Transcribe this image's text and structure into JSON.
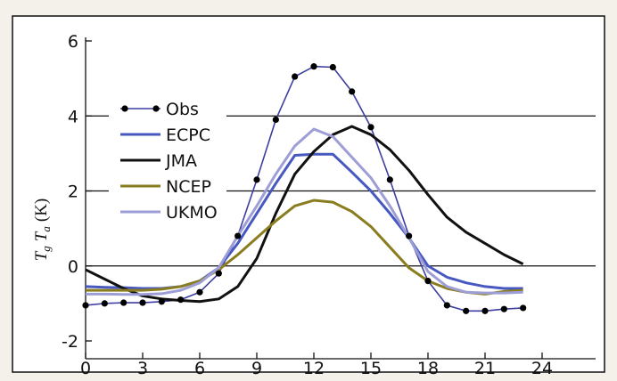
{
  "chart_data": {
    "type": "line",
    "title": "",
    "xlabel": "",
    "ylabel": "Tg Ta (K)",
    "ylabel_parts": {
      "sym1": "T",
      "sub1": "g",
      "sym2": "T",
      "sub2": "a",
      "unit": "(K)"
    },
    "xlim": [
      0,
      24
    ],
    "ylim": [
      -2,
      6
    ],
    "xticks": [
      0,
      3,
      6,
      9,
      12,
      15,
      18,
      21,
      24
    ],
    "xtick_labels": [
      "0",
      "3",
      "6",
      "9",
      "12",
      "15",
      "18",
      "21",
      "24"
    ],
    "yticks": [
      -2,
      0,
      2,
      4,
      6
    ],
    "ytick_labels": [
      "-2",
      "0",
      "2",
      "4",
      "6"
    ],
    "grid": {
      "horizontal": [
        0,
        2,
        4
      ],
      "vertical": false
    },
    "legend": {
      "placement": "upper-left"
    },
    "x": [
      0,
      1,
      2,
      3,
      4,
      5,
      6,
      7,
      8,
      9,
      10,
      11,
      12,
      13,
      14,
      15,
      16,
      17,
      18,
      19,
      20,
      21,
      22,
      23
    ],
    "series": [
      {
        "name": "Obs",
        "color": "#3d3fa0",
        "markers": true,
        "values": [
          -1.05,
          -1.0,
          -0.98,
          -0.98,
          -0.95,
          -0.9,
          -0.7,
          -0.2,
          0.8,
          2.3,
          3.9,
          5.05,
          5.32,
          5.3,
          4.65,
          3.7,
          2.3,
          0.8,
          -0.4,
          -1.05,
          -1.2,
          -1.2,
          -1.15,
          -1.12
        ]
      },
      {
        "name": "ECPC",
        "color": "#4758c0",
        "markers": false,
        "values": [
          -0.55,
          -0.57,
          -0.58,
          -0.6,
          -0.6,
          -0.55,
          -0.4,
          -0.05,
          0.6,
          1.4,
          2.2,
          2.95,
          2.98,
          2.98,
          2.5,
          2.0,
          1.4,
          0.75,
          0.0,
          -0.3,
          -0.45,
          -0.55,
          -0.6,
          -0.6
        ]
      },
      {
        "name": "JMA",
        "color": "#111111",
        "markers": false,
        "values": [
          -0.1,
          -0.35,
          -0.6,
          -0.8,
          -0.88,
          -0.92,
          -0.95,
          -0.88,
          -0.55,
          0.2,
          1.4,
          2.45,
          3.05,
          3.5,
          3.72,
          3.5,
          3.1,
          2.55,
          1.9,
          1.3,
          0.9,
          0.6,
          0.3,
          0.05
        ]
      },
      {
        "name": "NCEP",
        "color": "#8a7d1f",
        "markers": false,
        "values": [
          -0.65,
          -0.65,
          -0.65,
          -0.65,
          -0.62,
          -0.55,
          -0.4,
          -0.1,
          0.3,
          0.75,
          1.2,
          1.6,
          1.75,
          1.7,
          1.45,
          1.05,
          0.5,
          -0.05,
          -0.4,
          -0.6,
          -0.7,
          -0.75,
          -0.68,
          -0.65
        ]
      },
      {
        "name": "UKMO",
        "color": "#9e9ed6",
        "markers": false,
        "values": [
          -0.75,
          -0.75,
          -0.76,
          -0.76,
          -0.74,
          -0.65,
          -0.45,
          -0.05,
          0.8,
          1.6,
          2.45,
          3.2,
          3.65,
          3.45,
          2.9,
          2.35,
          1.6,
          0.75,
          -0.15,
          -0.55,
          -0.7,
          -0.72,
          -0.72,
          -0.7
        ]
      }
    ]
  }
}
